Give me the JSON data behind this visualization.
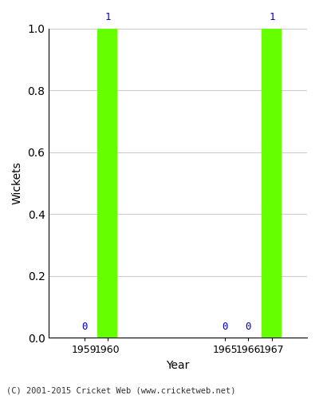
{
  "years": [
    1959,
    1960,
    1965,
    1966,
    1967
  ],
  "wickets": [
    0,
    1,
    0,
    0,
    1
  ],
  "bar_color": "#66ff00",
  "label_color": "#0000cc",
  "xlabel": "Year",
  "ylabel": "Wickets",
  "ylim": [
    0,
    1.0
  ],
  "xlim": [
    1957.5,
    1968.5
  ],
  "yticks": [
    0.0,
    0.2,
    0.4,
    0.6,
    0.8,
    1.0
  ],
  "background_color": "#ffffff",
  "grid_color": "#cccccc",
  "footnote": "(C) 2001-2015 Cricket Web (www.cricketweb.net)",
  "bar_width": 0.85
}
